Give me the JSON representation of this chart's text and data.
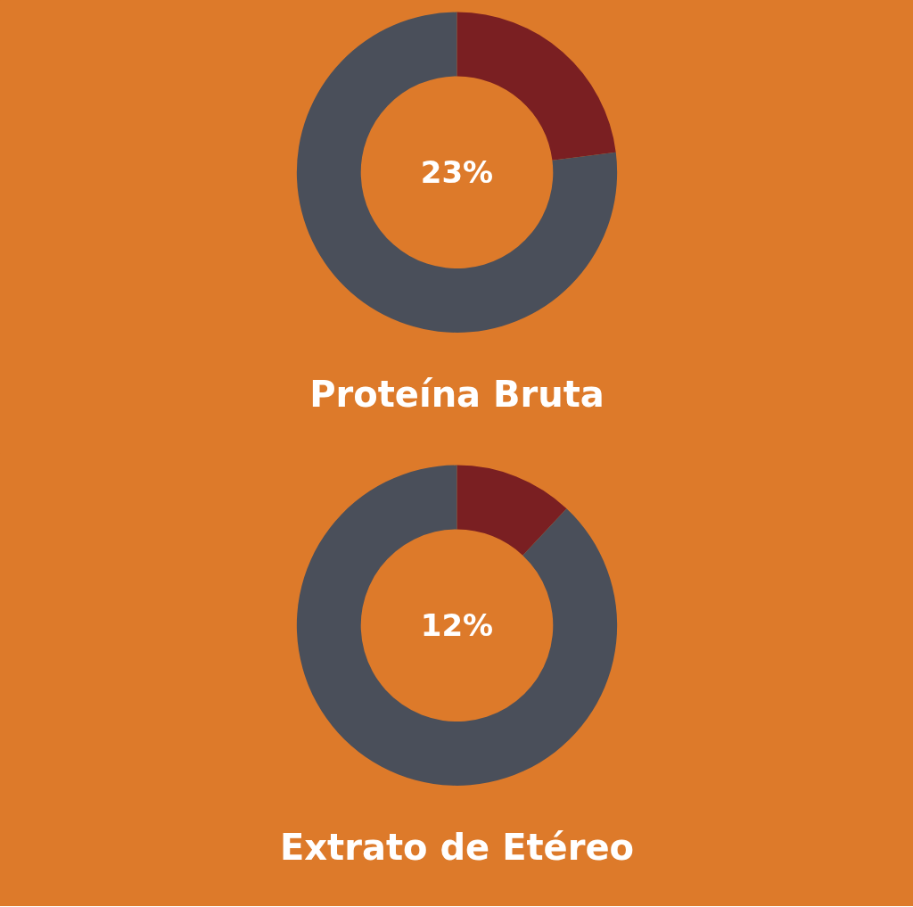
{
  "chart_data": [
    {
      "type": "donut",
      "title": "Proteína Bruta",
      "categories": [
        null,
        null
      ],
      "values": [
        23,
        77
      ],
      "colors": [
        "#7a1f22",
        "#4a4f5a"
      ],
      "annotations": [
        "23%"
      ]
    },
    {
      "type": "donut",
      "title": "Extrato de Etéreo",
      "categories": [
        null,
        null
      ],
      "values": [
        12,
        88
      ],
      "colors": [
        "#7a1f22",
        "#4a4f5a"
      ],
      "annotations": [
        "12%"
      ]
    }
  ]
}
